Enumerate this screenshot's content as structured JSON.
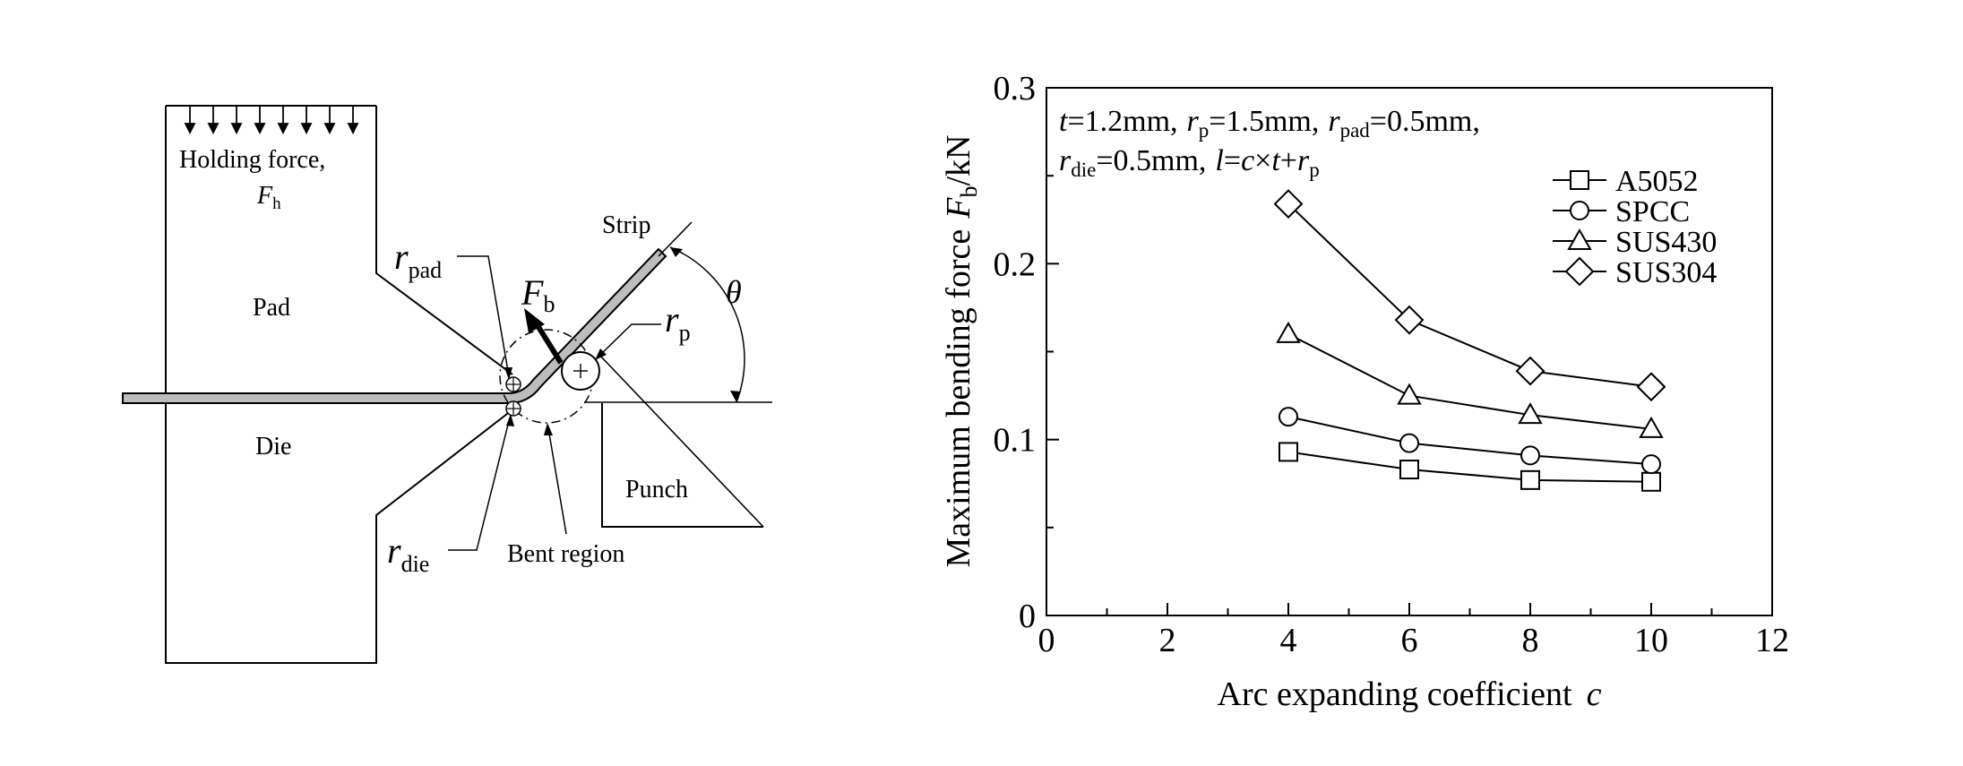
{
  "diagram": {
    "holding_force_label": "Holding force,",
    "holding_force_symbol": "F",
    "holding_force_sub": "h",
    "pad_label": "Pad",
    "die_label": "Die",
    "strip_label": "Strip",
    "punch_label": "Punch",
    "bent_region_label": "Bent region",
    "theta_label": "θ",
    "fb_symbol": "F",
    "fb_sub": "b",
    "rpad_symbol": "r",
    "rpad_sub": "pad",
    "rp_symbol": "r",
    "rp_sub": "p",
    "rdie_symbol": "r",
    "rdie_sub": "die"
  },
  "chart_data": {
    "type": "line",
    "xlabel": "Arc expanding coefficient",
    "xlabel_symbol": "c",
    "ylabel": "Maximum bending force",
    "ylabel_symbol": "F",
    "ylabel_sub": "b",
    "ylabel_unit": "/kN",
    "xlim": [
      0,
      12
    ],
    "ylim": [
      0,
      0.3
    ],
    "x_ticks": [
      0,
      2,
      4,
      6,
      8,
      10,
      12
    ],
    "x_tick_labels": [
      "0",
      "2",
      "4",
      "6",
      "8",
      "10",
      "12"
    ],
    "y_ticks": [
      0,
      0.1,
      0.2,
      0.3
    ],
    "y_tick_labels": [
      "0",
      "0.1",
      "0.2",
      "0.3"
    ],
    "grid": false,
    "legend_position": "top-right",
    "annotation": {
      "t_sym": "t",
      "t_val": "=1.2mm,",
      "rp_sym": "r",
      "rp_sub": "p",
      "rp_val": "=1.5mm,",
      "rpad_sym": "r",
      "rpad_sub": "pad",
      "rpad_val": "=0.5mm,",
      "rdie_sym": "r",
      "rdie_sub": "die",
      "rdie_val": "=0.5mm,",
      "l_sym": "l",
      "eq1": "=",
      "c_sym": "c",
      "times": "×",
      "t2_sym": "t",
      "plus": "+",
      "rp2_sym": "r",
      "rp2_sub": "p"
    },
    "x": [
      4,
      6,
      8,
      10
    ],
    "series": [
      {
        "name": "A5052",
        "marker": "square",
        "values": [
          0.093,
          0.083,
          0.077,
          0.076
        ]
      },
      {
        "name": "SPCC",
        "marker": "circle",
        "values": [
          0.113,
          0.098,
          0.091,
          0.086
        ]
      },
      {
        "name": "SUS430",
        "marker": "triangle",
        "values": [
          0.16,
          0.125,
          0.114,
          0.106
        ]
      },
      {
        "name": "SUS304",
        "marker": "diamond",
        "values": [
          0.234,
          0.168,
          0.139,
          0.13
        ]
      }
    ]
  }
}
